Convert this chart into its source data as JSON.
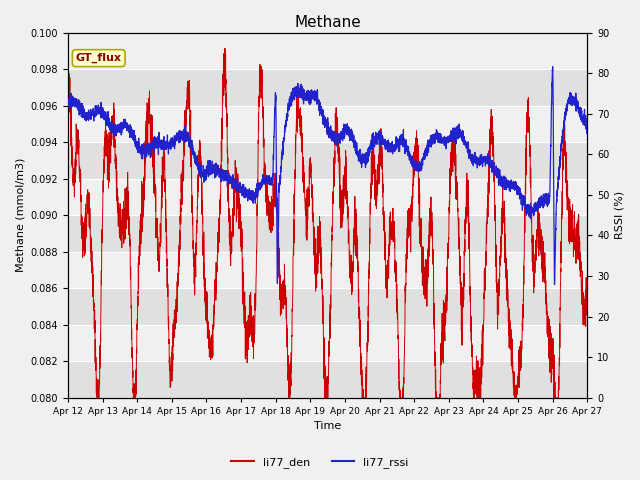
{
  "title": "Methane",
  "xlabel": "Time",
  "ylabel_left": "Methane (mmol/m3)",
  "ylabel_right": "RSSI (%)",
  "ylim_left": [
    0.08,
    0.1
  ],
  "ylim_right": [
    0,
    90
  ],
  "yticks_left": [
    0.08,
    0.082,
    0.084,
    0.086,
    0.088,
    0.09,
    0.092,
    0.094,
    0.096,
    0.098,
    0.1
  ],
  "yticks_right": [
    0,
    10,
    20,
    30,
    40,
    50,
    60,
    70,
    80,
    90
  ],
  "xtick_labels": [
    "Apr 12",
    "Apr 13",
    "Apr 14",
    "Apr 15",
    "Apr 16",
    "Apr 17",
    "Apr 18",
    "Apr 19",
    "Apr 20",
    "Apr 21",
    "Apr 22",
    "Apr 23",
    "Apr 24",
    "Apr 25",
    "Apr 26",
    "Apr 27"
  ],
  "color_red": "#cc0000",
  "color_blue": "#2222cc",
  "legend_labels": [
    "li77_den",
    "li77_rssi"
  ],
  "annotation_text": "GT_flux",
  "annotation_color_bg": "#ffffcc",
  "annotation_color_border": "#aaaa00",
  "fig_bg_color": "#f0f0f0",
  "plot_bg_color": "#e0e0e0",
  "white_band_color": "#f0f0f0",
  "num_points": 4000
}
